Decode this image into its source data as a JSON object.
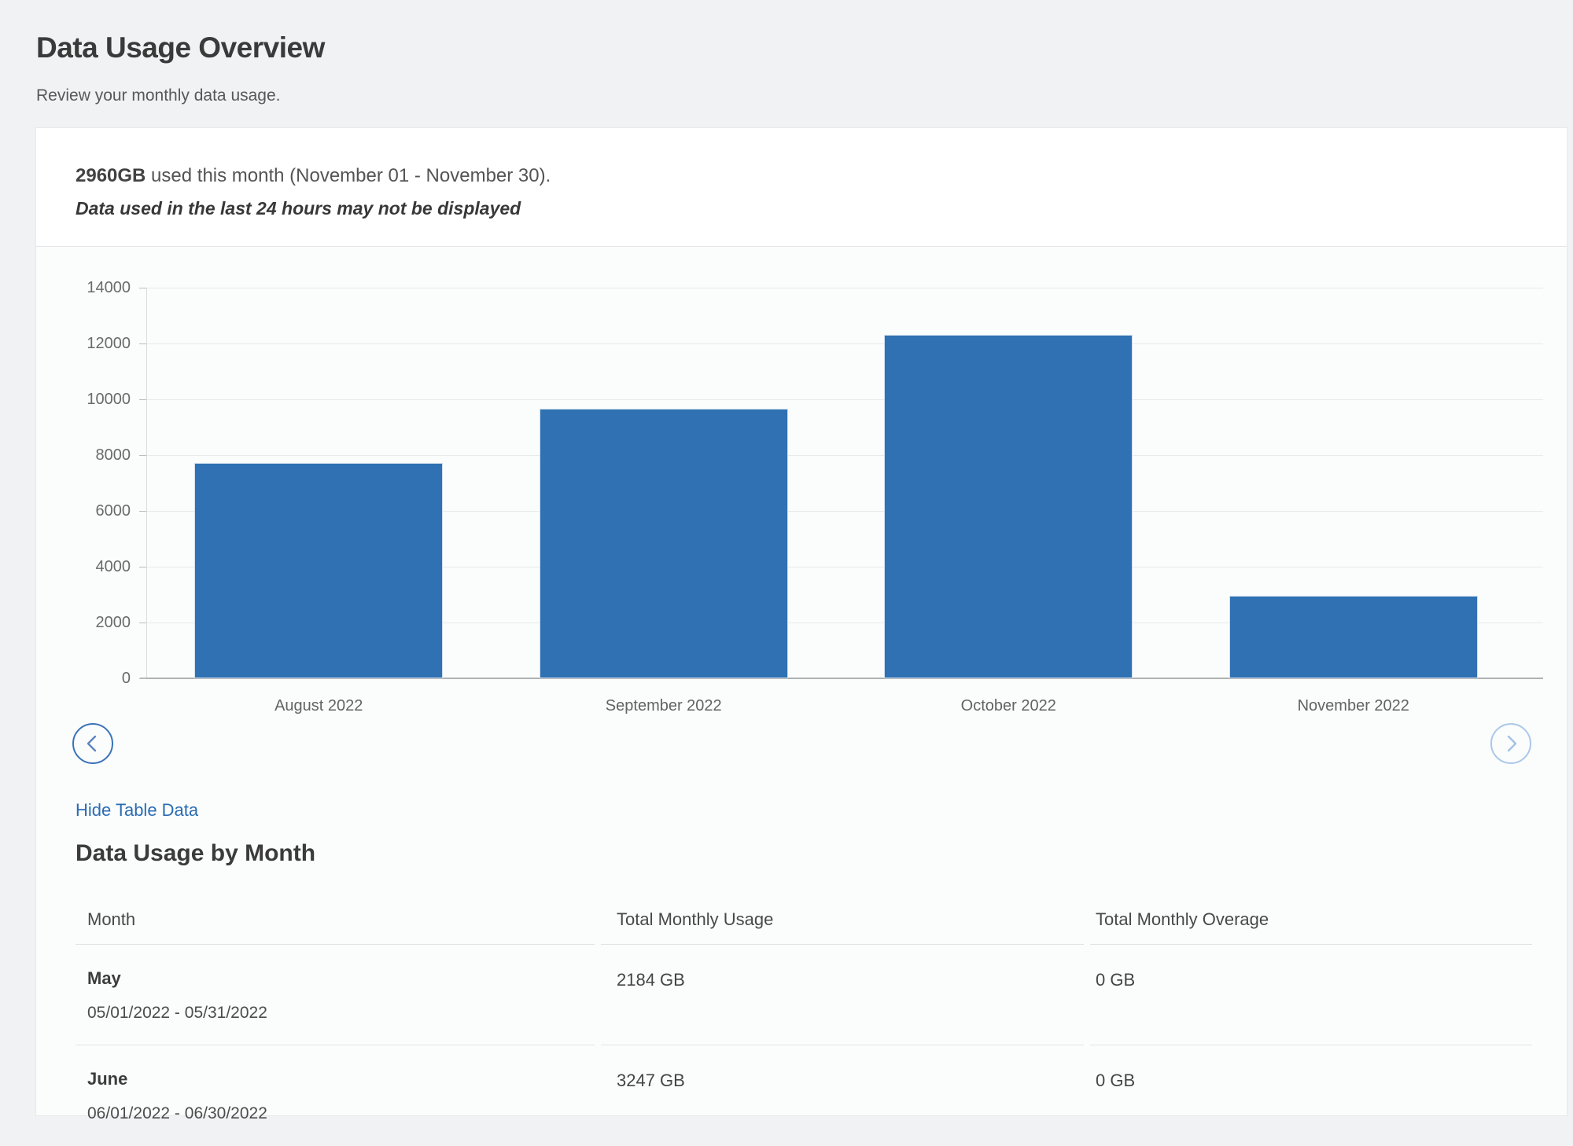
{
  "page": {
    "title": "Data Usage Overview",
    "subtitle": "Review your monthly data usage."
  },
  "summary": {
    "amount": "2960GB",
    "rest": " used this month (November 01 - November 30).",
    "disclaimer": "Data used in the last 24 hours may not be displayed"
  },
  "chart_data": {
    "type": "bar",
    "categories": [
      "August 2022",
      "September 2022",
      "October 2022",
      "November 2022"
    ],
    "values": [
      7720,
      9660,
      12300,
      2960
    ],
    "title": "",
    "xlabel": "",
    "ylabel": "",
    "ylim": [
      0,
      14000
    ],
    "ytick_step": 2000,
    "yticks": [
      0,
      2000,
      4000,
      6000,
      8000,
      10000,
      12000,
      14000
    ],
    "grid": true,
    "legend": "none",
    "bar_color": "#2f71b2"
  },
  "chart_nav": {
    "prev_icon": "chevron-left-icon",
    "next_icon": "chevron-right-icon"
  },
  "table_section": {
    "toggle_link": "Hide Table Data",
    "heading": "Data Usage by Month",
    "columns": [
      "Month",
      "Total Monthly Usage",
      "Total Monthly Overage"
    ],
    "rows": [
      {
        "month": "May",
        "range": "05/01/2022 - 05/31/2022",
        "usage": "2184 GB",
        "overage": "0 GB"
      },
      {
        "month": "June",
        "range": "06/01/2022 - 06/30/2022",
        "usage": "3247 GB",
        "overage": "0 GB"
      }
    ]
  },
  "colors": {
    "bar": "#2f71b2",
    "link": "#2a6cb3",
    "nav_active": "#3b73b9",
    "nav_disabled": "#abc8e8",
    "page_bg": "#f1f2f3"
  }
}
